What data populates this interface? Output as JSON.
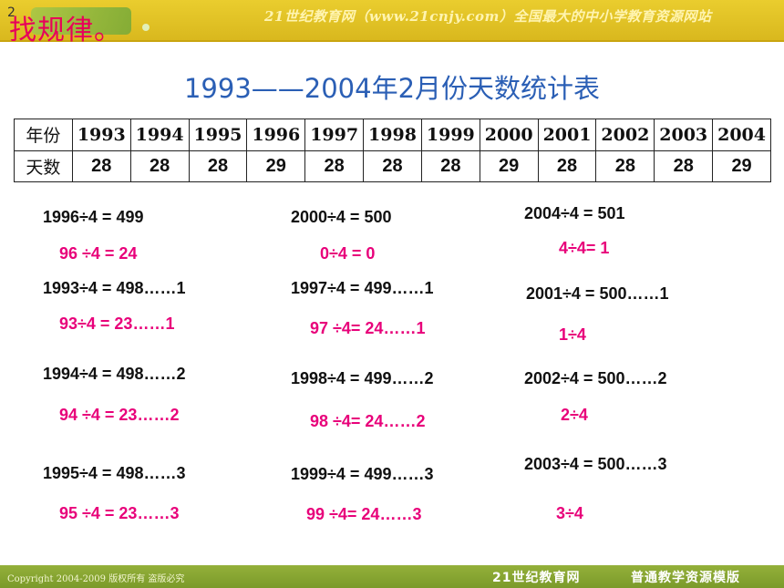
{
  "header": {
    "slide_number": "2",
    "slogan": "21世纪教育网（www.21cnjy.com）全国最大的中小学教育资源网站",
    "heading": "找规律。"
  },
  "title": "1993——2004年2月份天数统计表",
  "table": {
    "row1_label": "年份",
    "row2_label": "天数",
    "years": [
      "1993",
      "1994",
      "1995",
      "1996",
      "1997",
      "1998",
      "1999",
      "2000",
      "2001",
      "2002",
      "2003",
      "2004"
    ],
    "days": [
      "28",
      "28",
      "28",
      "29",
      "28",
      "28",
      "28",
      "29",
      "28",
      "28",
      "28",
      "29"
    ]
  },
  "column1": {
    "e1": "1996÷4 = 499",
    "p1": "96 ÷4 = 24",
    "e2": "1993÷4 = 498……1",
    "p2": "93÷4 = 23……1",
    "e3": "1994÷4 = 498……2",
    "p3": "94 ÷4 = 23……2",
    "e4": "1995÷4 = 498……3",
    "p4": "95 ÷4 = 23……3"
  },
  "column2": {
    "e1": "2000÷4 = 500",
    "p1": "0÷4 = 0",
    "e2": "1997÷4 = 499……1",
    "p2": "97 ÷4= 24……1",
    "e3": "1998÷4 = 499……2",
    "p3": "98 ÷4= 24……2",
    "e4": "1999÷4 = 499……3",
    "p4": "99 ÷4= 24……3"
  },
  "column3": {
    "e1": "2004÷4 = 501",
    "p1": "4÷4= 1",
    "e2": "2001÷4 = 500……1",
    "p2": "1÷4",
    "e3": "2002÷4 = 500……2",
    "p3": "2÷4",
    "e4": "2003÷4 = 500……3",
    "p4": "3÷4"
  },
  "footer": {
    "copyright": "Copyright 2004-2009 版权所有 盗版必究",
    "brand": "21世纪教育网",
    "label": "普通教学资源模版"
  },
  "colors": {
    "header": "#e0c226",
    "title": "#2b5fb5",
    "highlight": "#e8007a",
    "footer": "#8aa632"
  }
}
